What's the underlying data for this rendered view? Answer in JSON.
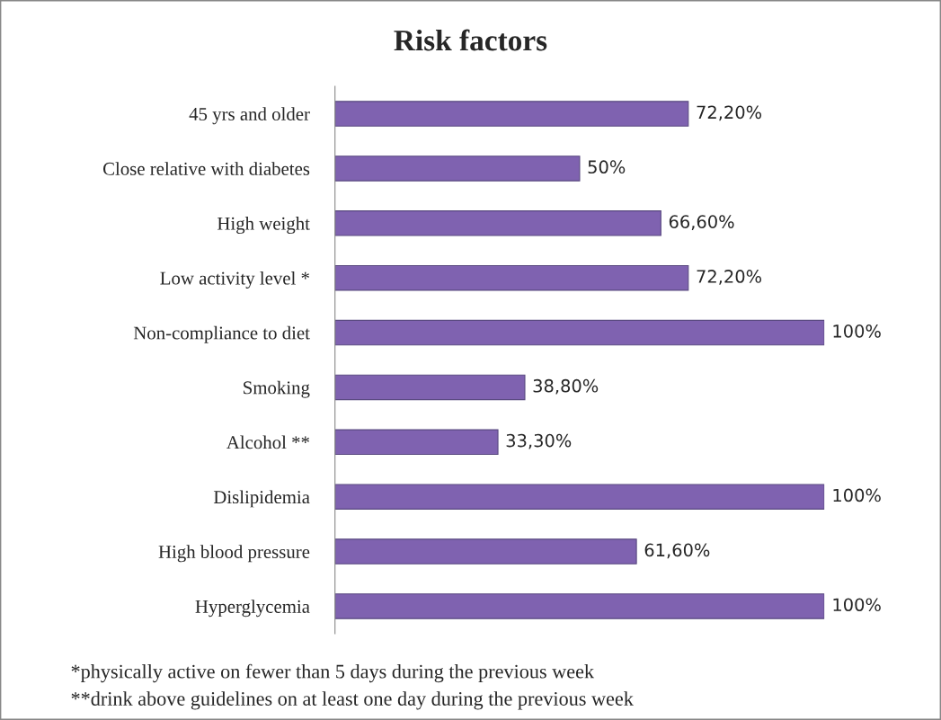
{
  "chart_data": {
    "type": "bar",
    "orientation": "horizontal",
    "title": "Risk factors",
    "categories": [
      "45 yrs and older",
      "Close relative with diabetes",
      "High weight",
      "Low activity level *",
      "Non-compliance to diet",
      "Smoking",
      "Alcohol **",
      "Dislipidemia",
      "High blood pressure",
      "Hyperglycemia"
    ],
    "values": [
      72.2,
      50,
      66.6,
      72.2,
      100,
      38.8,
      33.3,
      100,
      61.6,
      100
    ],
    "value_labels": [
      "72,20%",
      "50%",
      "66,60%",
      "72,20%",
      "100%",
      "38,80%",
      "33,30%",
      "100%",
      "61,60%",
      "100%"
    ],
    "color": "#7f62b0",
    "tick_labels": "y",
    "grid": false,
    "legend": false,
    "annotations": [
      "*physically active on fewer than 5 days during the previous week",
      "**drink above guidelines on at least one day during the previous week"
    ]
  }
}
